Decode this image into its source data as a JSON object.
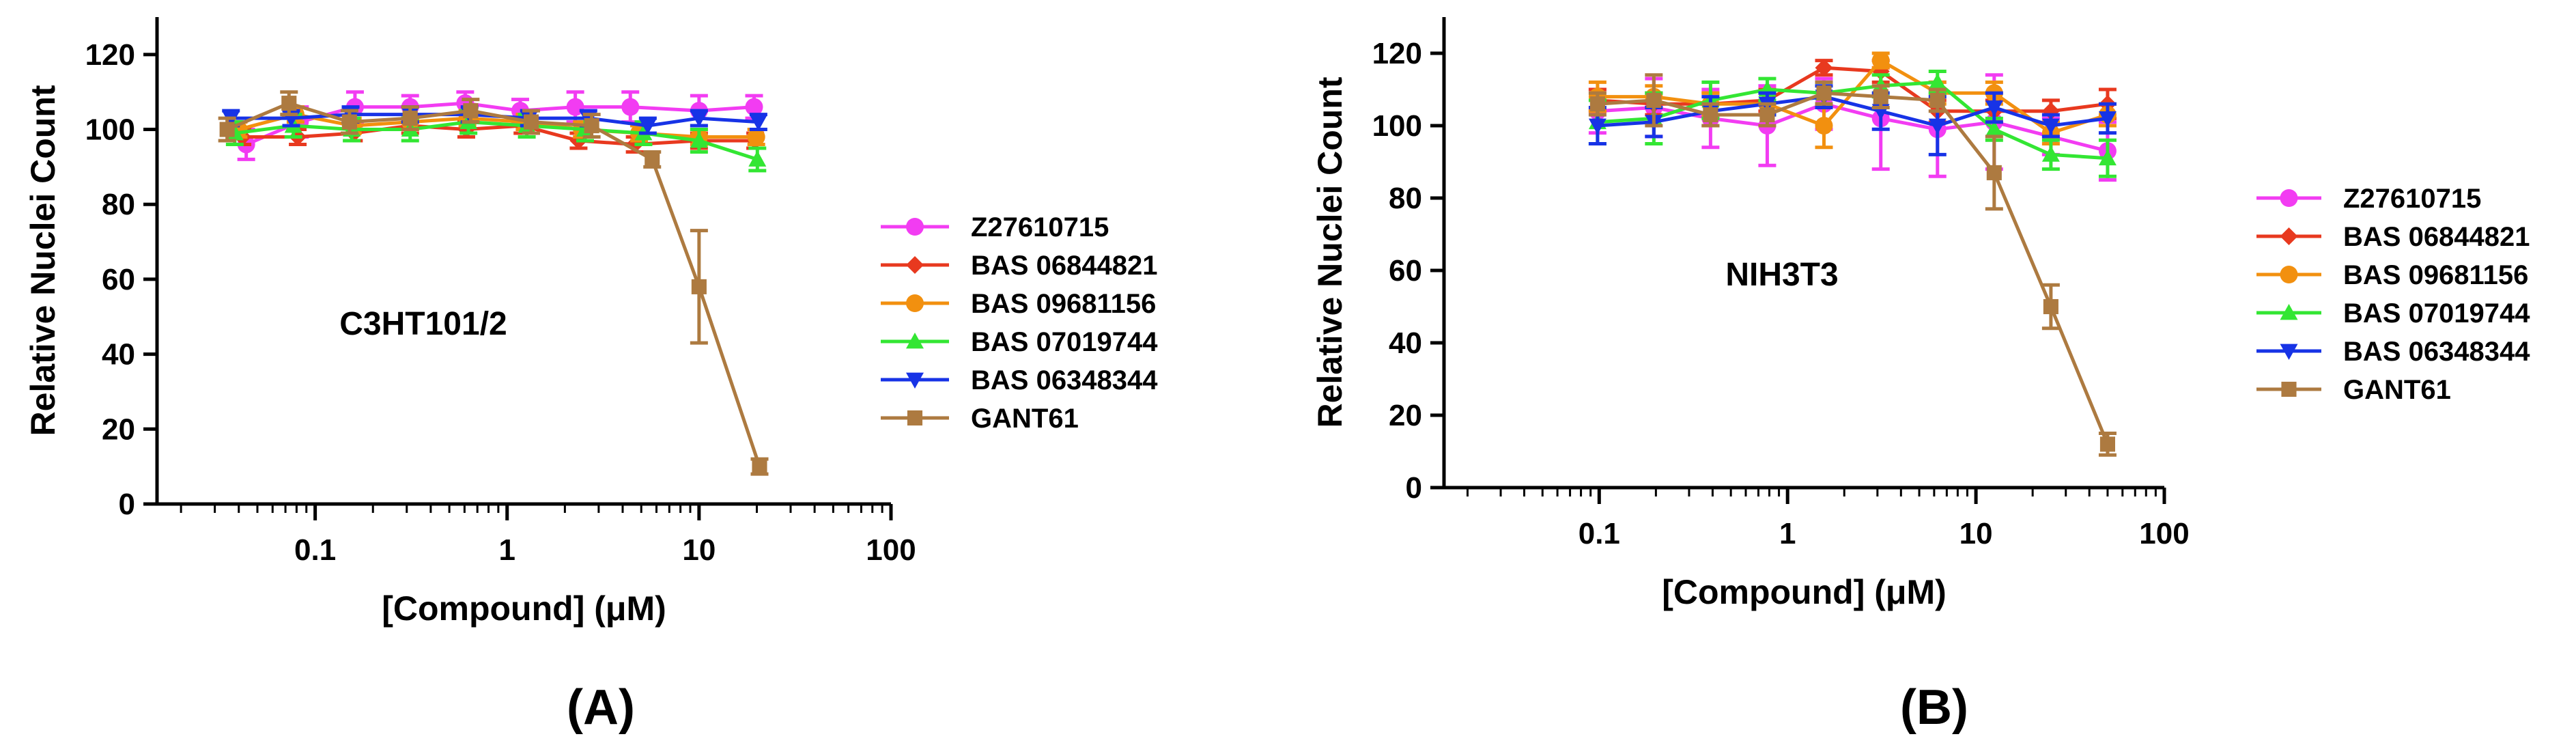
{
  "series_style": [
    {
      "name": "Z27610715",
      "color": "#f23cf2",
      "marker": "circle"
    },
    {
      "name": "BAS 06844821",
      "color": "#e8391f",
      "marker": "diamond"
    },
    {
      "name": "BAS 09681156",
      "color": "#f2900f",
      "marker": "circle"
    },
    {
      "name": "BAS 07019744",
      "color": "#33e633",
      "marker": "triangle-up"
    },
    {
      "name": "BAS 06348344",
      "color": "#1733e6",
      "marker": "triangle-down"
    },
    {
      "name": "GANT61",
      "color": "#ad7a40",
      "marker": "square"
    }
  ],
  "chart_data": [
    {
      "type": "line",
      "panel_label": "(A)",
      "title": "",
      "annotation": "C3HT101/2",
      "xlabel": "[Compound] (μM)",
      "ylabel": "Relative Nuclei Count",
      "xscale": "log",
      "xlim": [
        0.015,
        100
      ],
      "ylim": [
        0,
        130
      ],
      "xticks": [
        0.1,
        1,
        10,
        100
      ],
      "xtick_labels": [
        "0.1",
        "1",
        "10",
        "100"
      ],
      "yticks": [
        0,
        20,
        40,
        60,
        80,
        100,
        120
      ],
      "ytick_labels": [
        "0",
        "20",
        "40",
        "60",
        "80",
        "100",
        "120"
      ],
      "x": [
        0.039,
        0.078,
        0.156,
        0.3125,
        0.625,
        1.25,
        2.5,
        5,
        10,
        20
      ],
      "legend_position": "right",
      "series": [
        {
          "name": "Z27610715",
          "values": [
            96,
            102,
            106,
            106,
            107,
            105,
            106,
            106,
            105,
            106
          ],
          "errors": [
            4,
            4,
            4,
            3,
            3,
            3,
            4,
            4,
            4,
            3
          ]
        },
        {
          "name": "BAS 06844821",
          "values": [
            98,
            98,
            99,
            101,
            100,
            101,
            97,
            96,
            97,
            97
          ],
          "errors": [
            2,
            2,
            2,
            2,
            2,
            2,
            2,
            2,
            2,
            2
          ]
        },
        {
          "name": "BAS 09681156",
          "values": [
            100,
            104,
            101,
            102,
            103,
            102,
            100,
            99,
            98,
            98
          ],
          "errors": [
            2,
            2,
            2,
            2,
            2,
            2,
            2,
            2,
            2,
            2
          ]
        },
        {
          "name": "BAS 07019744",
          "values": [
            99,
            101,
            100,
            100,
            102,
            101,
            100,
            99,
            97,
            92
          ],
          "errors": [
            3,
            3,
            3,
            3,
            3,
            3,
            3,
            3,
            3,
            3
          ]
        },
        {
          "name": "BAS 06348344",
          "values": [
            103,
            103,
            104,
            104,
            104,
            103,
            103,
            101,
            103,
            102
          ],
          "errors": [
            2,
            2,
            2,
            2,
            2,
            2,
            2,
            2,
            2,
            2
          ]
        },
        {
          "name": "GANT61",
          "values": [
            100,
            107,
            102,
            103,
            105,
            102,
            101,
            92,
            58,
            10
          ],
          "errors": [
            3,
            3,
            3,
            3,
            3,
            3,
            3,
            2,
            15,
            2
          ]
        }
      ]
    },
    {
      "type": "line",
      "panel_label": "(B)",
      "title": "",
      "annotation": "NIH3T3",
      "xlabel": "[Compound] (μM)",
      "ylabel": "Relative Nuclei Count",
      "xscale": "log",
      "xlim": [
        0.015,
        100
      ],
      "ylim": [
        0,
        130
      ],
      "xticks": [
        0.1,
        1,
        10,
        100
      ],
      "xtick_labels": [
        "0.1",
        "1",
        "10",
        "100"
      ],
      "yticks": [
        0,
        20,
        40,
        60,
        80,
        100,
        120
      ],
      "ytick_labels": [
        "0",
        "20",
        "40",
        "60",
        "80",
        "100",
        "120"
      ],
      "x": [
        0.098,
        0.195,
        0.39,
        0.78,
        1.56,
        3.125,
        6.25,
        12.5,
        25,
        50
      ],
      "legend_position": "right",
      "series": [
        {
          "name": "Z27610715",
          "values": [
            104,
            105,
            102,
            100,
            106,
            102,
            99,
            101,
            97,
            93
          ],
          "errors": [
            6,
            8,
            8,
            11,
            7,
            14,
            13,
            13,
            5,
            8
          ]
        },
        {
          "name": "BAS 06844821",
          "values": [
            107,
            106,
            106,
            107,
            116,
            115,
            104,
            104,
            104,
            106
          ],
          "errors": [
            3,
            3,
            3,
            3,
            2,
            3,
            3,
            3,
            3,
            4
          ]
        },
        {
          "name": "BAS 09681156",
          "values": [
            108,
            108,
            106,
            106,
            100,
            118,
            109,
            109,
            98,
            103
          ],
          "errors": [
            4,
            3,
            3,
            3,
            6,
            2,
            3,
            3,
            3,
            3
          ]
        },
        {
          "name": "BAS 07019744",
          "values": [
            101,
            102,
            107,
            110,
            109,
            111,
            112,
            99,
            92,
            91
          ],
          "errors": [
            6,
            7,
            5,
            3,
            3,
            3,
            3,
            3,
            4,
            5
          ]
        },
        {
          "name": "BAS 06348344",
          "values": [
            100,
            101,
            104,
            106,
            108,
            104,
            100,
            105,
            100,
            102
          ],
          "errors": [
            5,
            4,
            4,
            3,
            3,
            5,
            8,
            4,
            3,
            4
          ]
        },
        {
          "name": "GANT61",
          "values": [
            106,
            107,
            103,
            103,
            109,
            108,
            107,
            87,
            50,
            12
          ],
          "errors": [
            3,
            7,
            3,
            3,
            3,
            3,
            3,
            10,
            6,
            3
          ]
        }
      ]
    }
  ]
}
